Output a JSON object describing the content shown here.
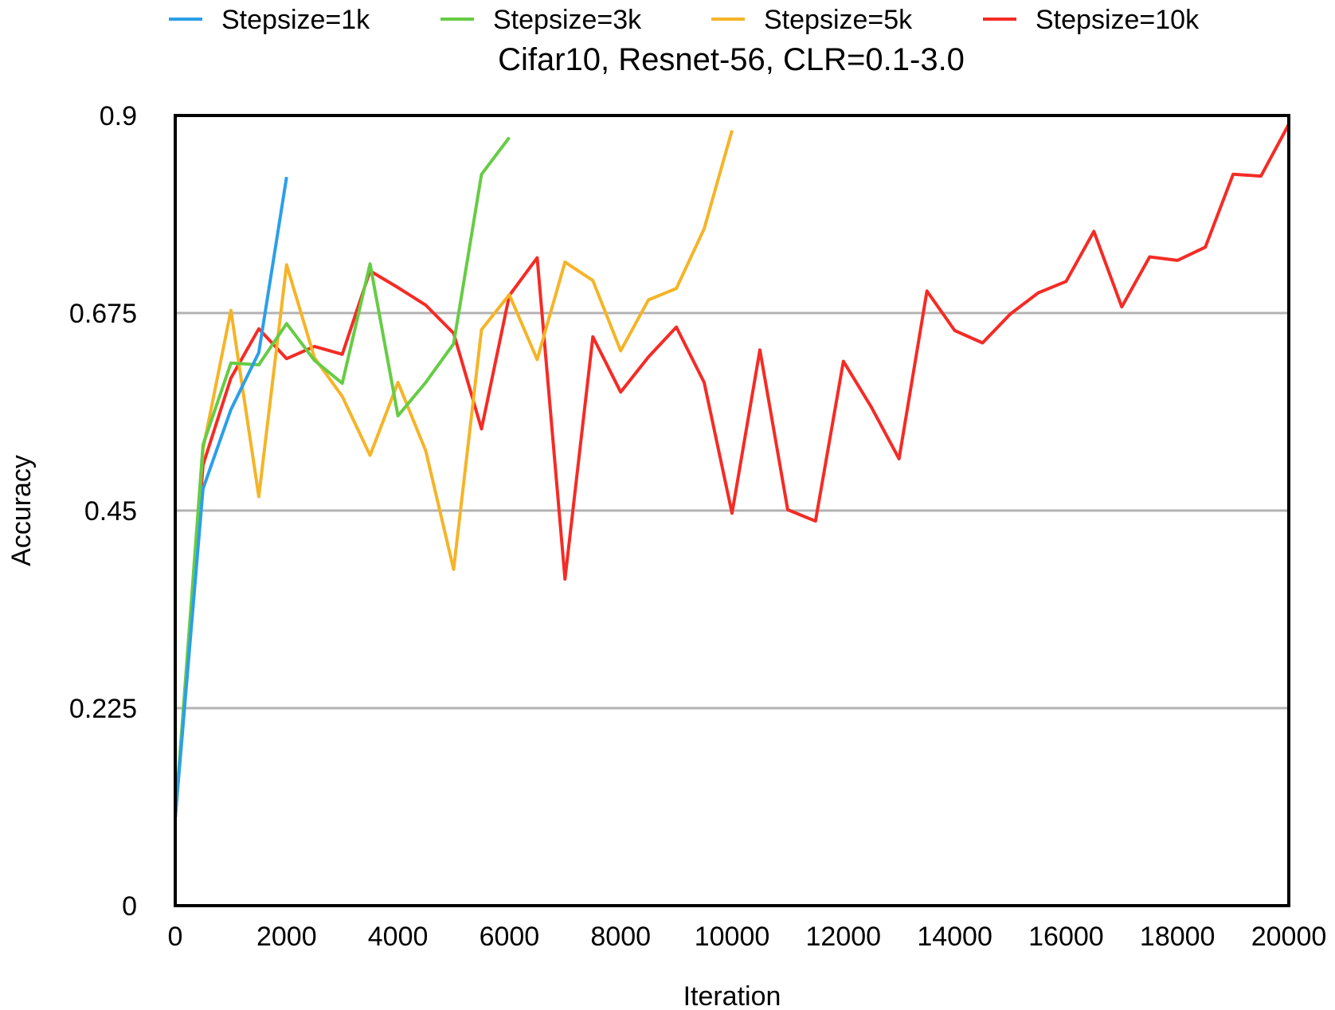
{
  "chart_data": {
    "type": "line",
    "title": "Cifar10, Resnet-56, CLR=0.1-3.0",
    "xlabel": "Iteration",
    "ylabel": "Accuracy",
    "xlim": [
      0,
      20000
    ],
    "ylim": [
      0,
      0.9
    ],
    "xticks": [
      0,
      2000,
      4000,
      6000,
      8000,
      10000,
      12000,
      14000,
      16000,
      18000,
      20000
    ],
    "xtick_labels": [
      "0",
      "2000",
      "4000",
      "6000",
      "8000",
      "10000",
      "12000",
      "14000",
      "16000",
      "18000",
      "20000"
    ],
    "yticks": [
      0,
      0.225,
      0.45,
      0.675,
      0.9
    ],
    "ytick_labels": [
      "0",
      "0.225",
      "0.45",
      "0.675",
      "0.9"
    ],
    "grid": "horizontal",
    "legend_position": "top",
    "series": [
      {
        "name": "Stepsize=1k",
        "color": "#2b9fe8",
        "x": [
          0,
          500,
          1000,
          1500,
          2000
        ],
        "y": [
          0.1,
          0.475,
          0.565,
          0.63,
          0.83
        ]
      },
      {
        "name": "Stepsize=3k",
        "color": "#66cc44",
        "x": [
          0,
          500,
          1000,
          1500,
          2000,
          2500,
          3000,
          3500,
          4000,
          4500,
          5000,
          5500,
          6000
        ],
        "y": [
          0.1,
          0.525,
          0.618,
          0.616,
          0.663,
          0.621,
          0.595,
          0.731,
          0.558,
          0.596,
          0.64,
          0.833,
          0.875
        ]
      },
      {
        "name": "Stepsize=5k",
        "color": "#f5b427",
        "x": [
          0,
          500,
          1000,
          1500,
          2000,
          2500,
          3000,
          3500,
          4000,
          4500,
          5000,
          5500,
          6000,
          6500,
          7000,
          7500,
          8000,
          8500,
          9000,
          9500,
          10000
        ],
        "y": [
          0.1,
          0.52,
          0.678,
          0.466,
          0.73,
          0.624,
          0.58,
          0.513,
          0.596,
          0.518,
          0.383,
          0.656,
          0.696,
          0.622,
          0.733,
          0.712,
          0.632,
          0.69,
          0.703,
          0.771,
          0.883
        ]
      },
      {
        "name": "Stepsize=10k",
        "color": "#f52b25",
        "x": [
          0,
          500,
          1000,
          1500,
          2000,
          2500,
          3000,
          3500,
          4000,
          4500,
          5000,
          5500,
          6000,
          6500,
          7000,
          7500,
          8000,
          8500,
          9000,
          9500,
          10000,
          10500,
          11000,
          11500,
          12000,
          12500,
          13000,
          13500,
          14000,
          14500,
          15000,
          15500,
          16000,
          16500,
          17000,
          17500,
          18000,
          18500,
          19000,
          19500,
          20000
        ],
        "y": [
          0.1,
          0.502,
          0.601,
          0.657,
          0.623,
          0.637,
          0.628,
          0.723,
          0.704,
          0.684,
          0.652,
          0.543,
          0.695,
          0.738,
          0.372,
          0.648,
          0.585,
          0.625,
          0.659,
          0.596,
          0.447,
          0.633,
          0.451,
          0.438,
          0.62,
          0.568,
          0.509,
          0.7,
          0.655,
          0.641,
          0.674,
          0.698,
          0.711,
          0.768,
          0.682,
          0.739,
          0.735,
          0.75,
          0.833,
          0.831,
          0.89
        ]
      }
    ]
  }
}
